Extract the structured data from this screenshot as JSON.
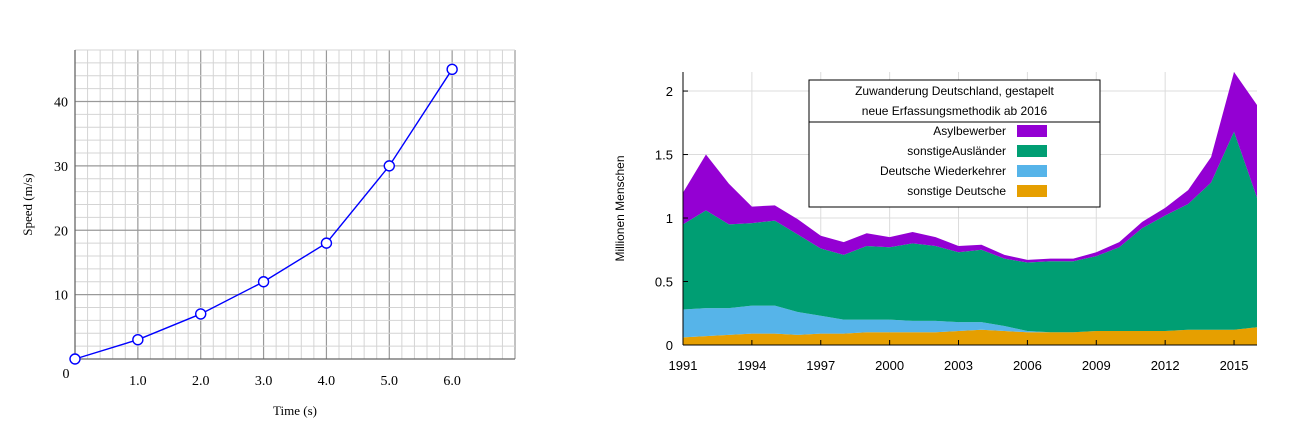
{
  "chart_data": [
    {
      "type": "line",
      "title": "",
      "xlabel": "Time (s)",
      "ylabel": "Speed (m/s)",
      "origin_label": "0",
      "x_tick_labels": [
        "1.0",
        "2.0",
        "3.0",
        "4.0",
        "5.0",
        "6.0"
      ],
      "y_tick_labels": [
        "10",
        "20",
        "30",
        "40"
      ],
      "xlim": [
        0,
        7
      ],
      "ylim": [
        0,
        48
      ],
      "grid": true,
      "series": [
        {
          "x": [
            0,
            1,
            2,
            3,
            4,
            5,
            6
          ],
          "values": [
            0,
            3,
            7,
            12,
            18,
            30,
            45
          ],
          "color": "#0000ff",
          "marker": "open-circle"
        }
      ]
    },
    {
      "type": "area",
      "stacked": true,
      "ylabel": "Millionen Menschen",
      "x_tick_labels": [
        "1991",
        "1994",
        "1997",
        "2000",
        "2003",
        "2006",
        "2009",
        "2012",
        "2015"
      ],
      "y_tick_labels": [
        "0",
        "0.5",
        "1",
        "1.5",
        "2"
      ],
      "xlim": [
        1991,
        2016
      ],
      "ylim": [
        0,
        2.15
      ],
      "grid": true,
      "legend": {
        "position": "top-center",
        "title_lines": [
          "Zuwanderung Deutschland, gestapelt",
          "neue Erfassungsmethodik ab 2016"
        ]
      },
      "x": [
        1991,
        1992,
        1993,
        1994,
        1995,
        1996,
        1997,
        1998,
        1999,
        2000,
        2001,
        2002,
        2003,
        2004,
        2005,
        2006,
        2007,
        2008,
        2009,
        2010,
        2011,
        2012,
        2013,
        2014,
        2015,
        2016
      ],
      "series": [
        {
          "name": "sonstige Deutsche",
          "color": "#e69f00",
          "values": [
            0.06,
            0.07,
            0.08,
            0.09,
            0.09,
            0.08,
            0.09,
            0.09,
            0.1,
            0.1,
            0.1,
            0.1,
            0.11,
            0.12,
            0.11,
            0.1,
            0.1,
            0.1,
            0.11,
            0.11,
            0.11,
            0.11,
            0.12,
            0.12,
            0.12,
            0.14
          ]
        },
        {
          "name": "Deutsche Wiederkehrer",
          "color": "#56b4e9",
          "values": [
            0.22,
            0.22,
            0.21,
            0.22,
            0.22,
            0.18,
            0.14,
            0.11,
            0.1,
            0.1,
            0.09,
            0.09,
            0.07,
            0.06,
            0.04,
            0.01,
            0.0,
            0.0,
            0.0,
            0.0,
            0.0,
            0.0,
            0.0,
            0.0,
            0.0,
            0.0
          ]
        },
        {
          "name": "sonstigeAusländer",
          "color": "#009e73",
          "values": [
            0.67,
            0.77,
            0.66,
            0.65,
            0.67,
            0.61,
            0.53,
            0.51,
            0.58,
            0.57,
            0.61,
            0.59,
            0.55,
            0.57,
            0.53,
            0.54,
            0.56,
            0.56,
            0.59,
            0.66,
            0.81,
            0.91,
            0.99,
            1.16,
            1.56,
            1.02
          ]
        },
        {
          "name": "Asylbewerber",
          "color": "#9400d3",
          "values": [
            0.25,
            0.44,
            0.32,
            0.13,
            0.12,
            0.12,
            0.1,
            0.1,
            0.1,
            0.08,
            0.09,
            0.07,
            0.05,
            0.04,
            0.03,
            0.02,
            0.02,
            0.02,
            0.03,
            0.04,
            0.05,
            0.06,
            0.11,
            0.2,
            0.47,
            0.73
          ]
        }
      ]
    }
  ]
}
